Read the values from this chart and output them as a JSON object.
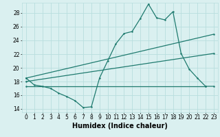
{
  "xlabel": "Humidex (Indice chaleur)",
  "bg_color": "#daf0f0",
  "line_color": "#1e7a6e",
  "grid_color": "#b8dede",
  "xlim": [
    -0.5,
    23.5
  ],
  "ylim": [
    13.5,
    29.5
  ],
  "xticks": [
    0,
    1,
    2,
    3,
    4,
    5,
    6,
    7,
    8,
    9,
    10,
    11,
    12,
    13,
    14,
    15,
    16,
    17,
    18,
    19,
    20,
    21,
    22,
    23
  ],
  "yticks": [
    14,
    16,
    18,
    20,
    22,
    24,
    26,
    28
  ],
  "series1_x": [
    0,
    1,
    2,
    3,
    4,
    5,
    6,
    7,
    8,
    9,
    10,
    11,
    12,
    13,
    14,
    15,
    16,
    17,
    18,
    19,
    20,
    21,
    22,
    23
  ],
  "series1_y": [
    18.5,
    17.5,
    17.3,
    17.0,
    16.3,
    15.8,
    15.2,
    14.2,
    14.3,
    18.5,
    21.0,
    23.5,
    25.0,
    25.3,
    27.2,
    29.3,
    27.3,
    27.0,
    28.2,
    22.1,
    19.8,
    18.5,
    17.3,
    17.3
  ],
  "series2_x": [
    0,
    23
  ],
  "series2_y": [
    18.5,
    24.9
  ],
  "series3_x": [
    0,
    23
  ],
  "series3_y": [
    18.0,
    22.1
  ],
  "series4_x": [
    0,
    22
  ],
  "series4_y": [
    17.3,
    17.3
  ],
  "xlabel_fontsize": 7,
  "tick_fontsize": 5.5,
  "linewidth": 0.9,
  "markersize": 1.8
}
